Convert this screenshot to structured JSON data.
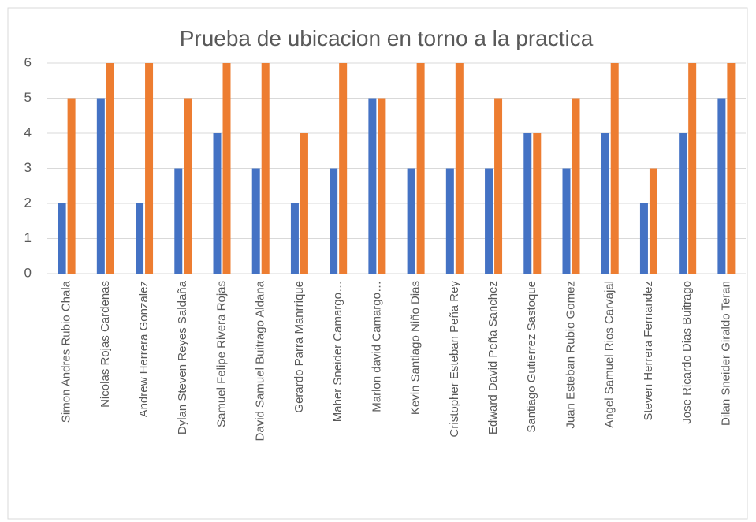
{
  "chart_data": {
    "type": "bar",
    "title": "Prueba de ubicacion en torno a la practica",
    "categories": [
      "Simon Andres Rubio Chala",
      "Nicolas Rojas Cardenas",
      "Andrew Herrera Gonzalez",
      "Dylan Steven Reyes Saldaña",
      "Samuel Felipe Rivera Rojas",
      "David Samuel Buitrago Aldana",
      "Gerardo Parra Manrrique",
      "Maher Sneider Camargo…",
      "Marlon david Camargo…",
      "Kevin Santiago Niño Dias",
      "Cristopher Esteban Peña Rey",
      "Edward David Peña Sanchez",
      "Santiago Gutierrez Sastoque",
      "Juan Esteban Rubio Gomez",
      "Angel Samuel Rios Carvajal",
      "Steven Herrera Fernandez",
      "Jose Ricardo Dias Buitrago",
      "Dilan Sneider Giraldo Teran"
    ],
    "series": [
      {
        "color": "#4472c4",
        "values": [
          2,
          5,
          2,
          3,
          4,
          3,
          2,
          3,
          5,
          3,
          3,
          3,
          4,
          3,
          4,
          2,
          4,
          5
        ]
      },
      {
        "color": "#ed7d31",
        "values": [
          5,
          6,
          6,
          5,
          6,
          6,
          4,
          6,
          5,
          6,
          6,
          5,
          4,
          5,
          6,
          3,
          6,
          6
        ]
      }
    ],
    "ylim": [
      0,
      6
    ],
    "yticks": [
      0,
      1,
      2,
      3,
      4,
      5,
      6
    ],
    "grid": true
  }
}
